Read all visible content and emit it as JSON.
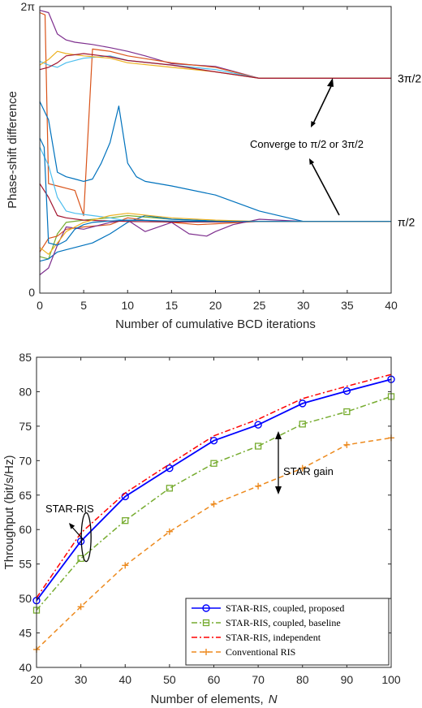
{
  "chart_data": [
    {
      "type": "line",
      "xlabel": "Number of cumulative BCD iterations",
      "ylabel": "Phase-shift difference",
      "xlim": [
        0,
        40
      ],
      "ylim": [
        0,
        6.283
      ],
      "x_ticks": [
        0,
        5,
        10,
        15,
        20,
        25,
        30,
        35,
        40
      ],
      "x_tick_labels": [
        "0",
        "5",
        "10",
        "15",
        "20",
        "25",
        "30",
        "35",
        "40"
      ],
      "y_tick_labels": [
        "0",
        "2π"
      ],
      "right_labels": [
        "3π/2",
        "π/2"
      ],
      "annotation": "Converge to π/2 or 3π/2",
      "grid": false,
      "series": [
        {
          "color": "#7E2F8E",
          "x": [
            0,
            1,
            2,
            3,
            4,
            6,
            8,
            10,
            12,
            15,
            20,
            25,
            30,
            40
          ],
          "y": [
            6.2,
            6.15,
            5.68,
            5.55,
            5.5,
            5.45,
            5.38,
            5.3,
            5.2,
            5.03,
            4.97,
            4.71,
            4.71,
            4.71
          ]
        },
        {
          "color": "#D95319",
          "x": [
            0,
            0.6,
            1,
            2,
            3,
            4,
            5,
            6,
            8,
            10,
            15,
            20,
            25,
            30,
            40
          ],
          "y": [
            6.15,
            6.1,
            2.4,
            2.35,
            2.3,
            2.25,
            1.7,
            5.35,
            5.3,
            5.2,
            5.05,
            4.95,
            4.71,
            4.71,
            4.71
          ]
        },
        {
          "color": "#0072BD",
          "x": [
            0,
            1,
            2,
            3,
            4,
            5,
            6,
            7,
            8,
            9,
            10,
            11,
            12,
            15,
            20,
            25,
            30,
            40
          ],
          "y": [
            4.2,
            3.8,
            2.65,
            2.55,
            2.5,
            2.45,
            2.5,
            2.85,
            3.3,
            4.1,
            2.85,
            2.55,
            2.45,
            2.35,
            2.15,
            1.8,
            1.571,
            1.571
          ]
        },
        {
          "color": "#4DBEEE",
          "x": [
            0,
            1,
            2,
            3,
            5,
            8,
            10,
            15,
            20,
            25,
            30,
            40
          ],
          "y": [
            5.08,
            5.0,
            4.95,
            5.05,
            5.15,
            5.2,
            5.1,
            5.0,
            4.9,
            4.71,
            4.71,
            4.71
          ]
        },
        {
          "color": "#EDB120",
          "x": [
            0,
            1,
            2,
            3,
            5,
            8,
            10,
            15,
            20,
            25,
            30,
            40
          ],
          "y": [
            5.0,
            5.12,
            5.3,
            5.25,
            5.2,
            5.15,
            5.05,
            4.95,
            4.85,
            4.71,
            4.71,
            4.71
          ]
        },
        {
          "color": "#A2142F",
          "x": [
            0,
            1,
            2,
            3,
            5,
            8,
            10,
            15,
            20,
            25,
            30,
            40
          ],
          "y": [
            4.9,
            4.95,
            5.05,
            5.2,
            5.25,
            5.18,
            5.1,
            5.0,
            4.85,
            4.71,
            4.71,
            4.71
          ]
        },
        {
          "color": "#77AC30",
          "x": [
            0,
            1,
            2,
            3,
            5,
            8,
            10,
            15,
            20,
            25,
            30,
            40
          ],
          "y": [
            0.8,
            0.75,
            1.3,
            1.55,
            1.6,
            1.65,
            1.7,
            1.62,
            1.58,
            1.571,
            1.571,
            1.571
          ]
        },
        {
          "color": "#0072BD",
          "x": [
            0,
            1,
            2,
            3,
            4,
            6,
            8,
            10,
            12,
            15,
            20,
            25,
            30,
            40
          ],
          "y": [
            0.7,
            0.75,
            0.9,
            0.95,
            1.0,
            1.1,
            1.3,
            1.55,
            1.7,
            1.62,
            1.58,
            1.571,
            1.571,
            1.571
          ]
        },
        {
          "color": "#D95319",
          "x": [
            0,
            1,
            2,
            3,
            5,
            8,
            10,
            12,
            15,
            18,
            20,
            25,
            30,
            40
          ],
          "y": [
            0.9,
            1.2,
            1.25,
            1.4,
            1.45,
            1.5,
            1.65,
            1.6,
            1.55,
            1.5,
            1.52,
            1.571,
            1.571,
            1.571
          ]
        },
        {
          "color": "#7E2F8E",
          "x": [
            0,
            1,
            2,
            3,
            5,
            8,
            10,
            12,
            15,
            17,
            19,
            20,
            22,
            25,
            30,
            40
          ],
          "y": [
            0.4,
            0.55,
            1.05,
            1.45,
            1.4,
            1.55,
            1.6,
            1.35,
            1.55,
            1.3,
            1.25,
            1.35,
            1.5,
            1.62,
            1.571,
            1.571
          ]
        },
        {
          "color": "#4DBEEE",
          "x": [
            0,
            1,
            2,
            3,
            4,
            6,
            8,
            10,
            12,
            15,
            20,
            25,
            30,
            40
          ],
          "y": [
            3.2,
            2.8,
            2.1,
            1.8,
            1.75,
            1.7,
            1.65,
            1.58,
            1.6,
            1.57,
            1.56,
            1.571,
            1.571,
            1.571
          ]
        },
        {
          "color": "#A2142F",
          "x": [
            0,
            1,
            2,
            3,
            5,
            8,
            10,
            15,
            20,
            25,
            30,
            40
          ],
          "y": [
            2.4,
            2.1,
            1.7,
            1.65,
            1.6,
            1.58,
            1.57,
            1.56,
            1.56,
            1.571,
            1.571,
            1.571
          ]
        },
        {
          "color": "#EDB120",
          "x": [
            0,
            1,
            2,
            3,
            5,
            8,
            10,
            15,
            20,
            25,
            30,
            40
          ],
          "y": [
            1.0,
            0.85,
            1.1,
            1.35,
            1.55,
            1.7,
            1.75,
            1.65,
            1.6,
            1.571,
            1.571,
            1.571
          ]
        },
        {
          "color": "#0072BD",
          "x": [
            0,
            0.5,
            1,
            2,
            3,
            4,
            5,
            6,
            8,
            10,
            15,
            20,
            25,
            30,
            40
          ],
          "y": [
            3.4,
            3.2,
            1.1,
            1.05,
            1.15,
            1.4,
            1.5,
            1.55,
            1.58,
            1.6,
            1.58,
            1.571,
            1.571,
            1.571,
            1.571
          ]
        }
      ]
    },
    {
      "type": "line",
      "xlabel": "Number of elements,",
      "xlabel_var": "N",
      "ylabel": "Throughput (bit/s/Hz)",
      "xlim": [
        20,
        100
      ],
      "ylim": [
        40,
        85
      ],
      "x_ticks": [
        20,
        30,
        40,
        50,
        60,
        70,
        80,
        90,
        100
      ],
      "x_tick_labels": [
        "20",
        "30",
        "40",
        "50",
        "60",
        "70",
        "80",
        "90",
        "100"
      ],
      "y_ticks": [
        40,
        45,
        50,
        55,
        60,
        65,
        70,
        75,
        80,
        85
      ],
      "y_tick_labels": [
        "40",
        "45",
        "50",
        "55",
        "60",
        "65",
        "70",
        "75",
        "80",
        "85"
      ],
      "grid": false,
      "legend_position": "bottom-right",
      "annotations": [
        "STAR-RIS",
        "STAR gain"
      ],
      "x": [
        20,
        30,
        40,
        50,
        60,
        70,
        80,
        90,
        100
      ],
      "series": [
        {
          "name": "STAR-RIS, coupled, proposed",
          "color": "#0000FF",
          "marker": "circle",
          "style": "solid",
          "values": [
            49.7,
            58.3,
            64.8,
            68.9,
            72.9,
            75.2,
            78.3,
            80.1,
            81.8
          ]
        },
        {
          "name": "STAR-RIS, coupled, baseline",
          "color": "#77AC30",
          "marker": "square",
          "style": "dashdot",
          "values": [
            48.3,
            55.8,
            61.3,
            66.0,
            69.6,
            72.1,
            75.3,
            77.1,
            79.3
          ]
        },
        {
          "name": "STAR-RIS, independent",
          "color": "#FF0000",
          "marker": "none",
          "style": "dashdot",
          "values": [
            50.1,
            59.5,
            65.3,
            69.5,
            73.6,
            76.0,
            79.0,
            80.8,
            82.5
          ]
        },
        {
          "name": "Conventional RIS",
          "color": "#ED8A1E",
          "marker": "plus",
          "style": "dashed",
          "values": [
            42.6,
            48.8,
            54.8,
            59.7,
            63.7,
            66.3,
            68.9,
            72.3,
            73.3
          ]
        }
      ]
    }
  ]
}
